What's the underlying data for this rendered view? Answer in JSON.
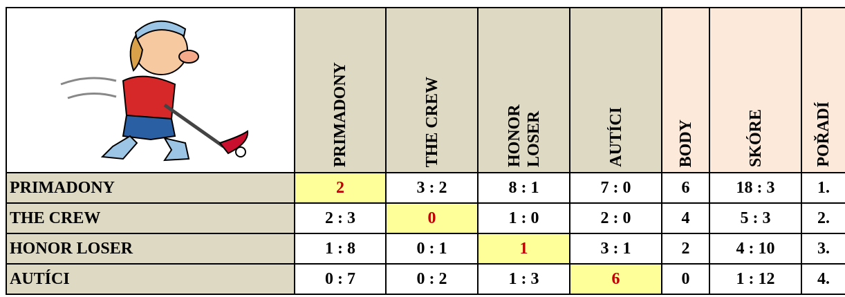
{
  "header": {
    "columns": [
      "PRIMADONY",
      "THE CREW",
      "HONOR LOSER",
      "AUTÍCI",
      "BODY",
      "SKÓRE",
      "POŘADÍ"
    ]
  },
  "table": {
    "rows": [
      [
        "PRIMADONY",
        "2",
        "3 : 2",
        "8 : 1",
        "7 : 0",
        "6",
        "18 : 3",
        "1."
      ],
      [
        "THE CREW",
        "2 : 3",
        "0",
        "1 : 0",
        "2 : 0",
        "4",
        "5 : 3",
        "2."
      ],
      [
        "HONOR LOSER",
        "1 : 8",
        "0 : 1",
        "1",
        "3 : 1",
        "2",
        "4 : 10",
        "3."
      ],
      [
        "AUTÍCI",
        "0 : 7",
        "0 : 2",
        "1 : 3",
        "6",
        "0",
        "1 : 12",
        "4."
      ]
    ]
  }
}
